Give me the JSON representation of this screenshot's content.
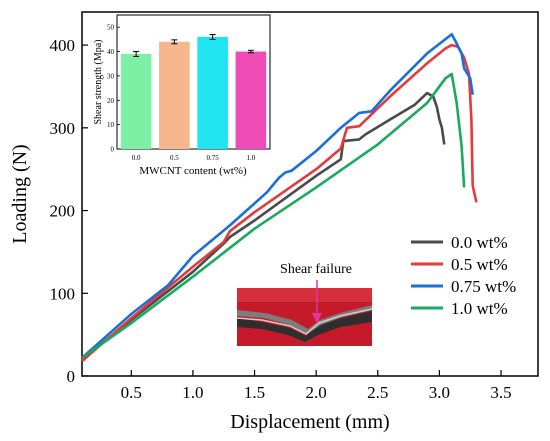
{
  "chart_data": [
    {
      "type": "line",
      "xlabel": "Displacement (mm)",
      "ylabel": "Loading (N)",
      "xlim": [
        0.1,
        3.8
      ],
      "ylim": [
        0,
        440
      ],
      "xticks": [
        0.5,
        1.0,
        1.5,
        2.0,
        2.5,
        3.0,
        3.5
      ],
      "xtick_labels": [
        "0.5",
        "1.0",
        "1.5",
        "2.0",
        "2.5",
        "3.0",
        "3.5"
      ],
      "yticks": [
        0,
        100,
        200,
        300,
        400
      ],
      "ytick_labels": [
        "0",
        "100",
        "200",
        "300",
        "400"
      ],
      "legend_position": "bottom-right",
      "series": [
        {
          "name": "0.0 wt%",
          "color": "#4a4a4a",
          "points": [
            [
              0.1,
              20
            ],
            [
              0.5,
              68
            ],
            [
              1.0,
              126
            ],
            [
              1.25,
              160
            ],
            [
              1.3,
              168
            ],
            [
              1.5,
              188
            ],
            [
              2.0,
              242
            ],
            [
              2.2,
              262
            ],
            [
              2.22,
              284
            ],
            [
              2.35,
              286
            ],
            [
              2.4,
              292
            ],
            [
              2.6,
              310
            ],
            [
              2.8,
              328
            ],
            [
              2.9,
              342
            ],
            [
              2.95,
              338
            ],
            [
              2.98,
              325
            ],
            [
              3.0,
              310
            ],
            [
              3.02,
              300
            ],
            [
              3.04,
              280
            ]
          ]
        },
        {
          "name": "0.5 wt%",
          "color": "#e8393a",
          "points": [
            [
              0.1,
              18
            ],
            [
              0.5,
              70
            ],
            [
              1.0,
              132
            ],
            [
              1.25,
              162
            ],
            [
              1.3,
              175
            ],
            [
              1.5,
              198
            ],
            [
              2.0,
              250
            ],
            [
              2.2,
              275
            ],
            [
              2.25,
              300
            ],
            [
              2.35,
              302
            ],
            [
              2.6,
              338
            ],
            [
              2.9,
              378
            ],
            [
              3.05,
              396
            ],
            [
              3.1,
              400
            ],
            [
              3.15,
              398
            ],
            [
              3.2,
              385
            ],
            [
              3.24,
              365
            ],
            [
              3.26,
              310
            ],
            [
              3.27,
              230
            ],
            [
              3.3,
              210
            ]
          ]
        },
        {
          "name": "0.75 wt%",
          "color": "#1a6fd8",
          "points": [
            [
              0.1,
              22
            ],
            [
              0.5,
              75
            ],
            [
              0.8,
              110
            ],
            [
              1.0,
              145
            ],
            [
              1.3,
              182
            ],
            [
              1.6,
              222
            ],
            [
              1.7,
              240
            ],
            [
              1.75,
              246
            ],
            [
              1.8,
              248
            ],
            [
              2.0,
              272
            ],
            [
              2.2,
              300
            ],
            [
              2.3,
              312
            ],
            [
              2.35,
              318
            ],
            [
              2.45,
              320
            ],
            [
              2.6,
              345
            ],
            [
              2.9,
              390
            ],
            [
              3.1,
              413
            ],
            [
              3.13,
              405
            ],
            [
              3.18,
              390
            ],
            [
              3.2,
              372
            ],
            [
              3.25,
              360
            ],
            [
              3.27,
              340
            ]
          ]
        },
        {
          "name": "1.0 wt%",
          "color": "#1aaa5e",
          "points": [
            [
              0.1,
              22
            ],
            [
              0.5,
              64
            ],
            [
              1.0,
              120
            ],
            [
              1.5,
              178
            ],
            [
              2.0,
              228
            ],
            [
              2.5,
              280
            ],
            [
              2.9,
              330
            ],
            [
              3.05,
              360
            ],
            [
              3.1,
              365
            ],
            [
              3.14,
              330
            ],
            [
              3.18,
              278
            ],
            [
              3.2,
              228
            ]
          ]
        }
      ],
      "annotations": [
        {
          "text": "Shear failure"
        }
      ]
    },
    {
      "type": "bar",
      "xlabel": "MWCNT content (wt%)",
      "ylabel": "Shear strength (Mpa)",
      "ylim": [
        0,
        55
      ],
      "yticks": [
        0,
        10,
        20,
        30,
        40,
        50
      ],
      "ytick_labels": [
        "0",
        "10",
        "20",
        "30",
        "40",
        "50"
      ],
      "categories": [
        "0.0",
        "0.5",
        "0.75",
        "1.0"
      ],
      "values": [
        39,
        44,
        46,
        40
      ],
      "errors": [
        1.0,
        0.8,
        1.0,
        0.5
      ],
      "colors": [
        "#7ef0a5",
        "#f6b78e",
        "#1fe4f2",
        "#f04cb8"
      ]
    }
  ]
}
